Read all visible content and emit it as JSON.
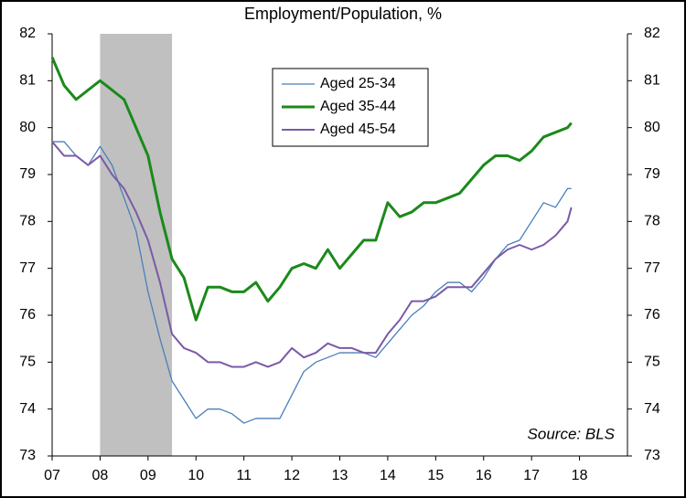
{
  "chart_data": {
    "type": "line",
    "title": "Employment/Population, %",
    "x": [
      2007,
      2007.25,
      2007.5,
      2007.75,
      2008,
      2008.25,
      2008.5,
      2008.75,
      2009,
      2009.25,
      2009.5,
      2009.75,
      2010,
      2010.25,
      2010.5,
      2010.75,
      2011,
      2011.25,
      2011.5,
      2011.75,
      2012,
      2012.25,
      2012.5,
      2012.75,
      2013,
      2013.25,
      2013.5,
      2013.75,
      2014,
      2014.25,
      2014.5,
      2014.75,
      2015,
      2015.25,
      2015.5,
      2015.75,
      2016,
      2016.25,
      2016.5,
      2016.75,
      2017,
      2017.25,
      2017.5,
      2017.75,
      2017.83
    ],
    "series": [
      {
        "name": "Aged 25-34",
        "color": "#4a7ebb",
        "width": 1.3,
        "values": [
          79.7,
          79.7,
          79.4,
          79.2,
          79.6,
          79.2,
          78.5,
          77.8,
          76.5,
          75.5,
          74.6,
          74.2,
          73.8,
          74.0,
          74.0,
          73.9,
          73.7,
          73.8,
          73.8,
          73.8,
          74.3,
          74.8,
          75.0,
          75.1,
          75.2,
          75.2,
          75.2,
          75.1,
          75.4,
          75.7,
          76.0,
          76.2,
          76.5,
          76.7,
          76.7,
          76.5,
          76.8,
          77.2,
          77.5,
          77.6,
          78.0,
          78.4,
          78.3,
          78.7,
          78.7
        ]
      },
      {
        "name": "Aged 35-44",
        "color": "#1a8a1a",
        "width": 3,
        "values": [
          81.5,
          80.9,
          80.6,
          80.8,
          81.0,
          80.8,
          80.6,
          80.0,
          79.4,
          78.2,
          77.2,
          76.8,
          75.9,
          76.6,
          76.6,
          76.5,
          76.5,
          76.7,
          76.3,
          76.6,
          77.0,
          77.1,
          77.0,
          77.4,
          77.0,
          77.3,
          77.6,
          77.6,
          78.4,
          78.1,
          78.2,
          78.4,
          78.4,
          78.5,
          78.6,
          78.9,
          79.2,
          79.4,
          79.4,
          79.3,
          79.5,
          79.8,
          79.9,
          80.0,
          80.1
        ]
      },
      {
        "name": "Aged 45-54",
        "color": "#7b5aa6",
        "width": 2,
        "values": [
          79.7,
          79.4,
          79.4,
          79.2,
          79.4,
          79.0,
          78.7,
          78.2,
          77.6,
          76.7,
          75.6,
          75.3,
          75.2,
          75.0,
          75.0,
          74.9,
          74.9,
          75.0,
          74.9,
          75.0,
          75.3,
          75.1,
          75.2,
          75.4,
          75.3,
          75.3,
          75.2,
          75.2,
          75.6,
          75.9,
          76.3,
          76.3,
          76.4,
          76.6,
          76.6,
          76.6,
          76.9,
          77.2,
          77.4,
          77.5,
          77.4,
          77.5,
          77.7,
          78.0,
          78.3
        ]
      }
    ],
    "xlim": [
      2007,
      2019
    ],
    "xticks": [
      {
        "value": 2007,
        "label": "07"
      },
      {
        "value": 2008,
        "label": "08"
      },
      {
        "value": 2009,
        "label": "09"
      },
      {
        "value": 2010,
        "label": "10"
      },
      {
        "value": 2011,
        "label": "11"
      },
      {
        "value": 2012,
        "label": "12"
      },
      {
        "value": 2013,
        "label": "13"
      },
      {
        "value": 2014,
        "label": "14"
      },
      {
        "value": 2015,
        "label": "15"
      },
      {
        "value": 2016,
        "label": "16"
      },
      {
        "value": 2017,
        "label": "17"
      },
      {
        "value": 2018,
        "label": "18"
      }
    ],
    "ylim": [
      73,
      82
    ],
    "yticks": [
      73,
      74,
      75,
      76,
      77,
      78,
      79,
      80,
      81,
      82
    ],
    "y2lim": [
      73,
      82
    ],
    "y2ticks": [
      73,
      74,
      75,
      76,
      77,
      78,
      79,
      80,
      81,
      82
    ],
    "shaded_region": [
      2008,
      2009.5
    ],
    "shaded_color": "#c0c0c0",
    "annotation": "Source: BLS",
    "grid": false
  }
}
